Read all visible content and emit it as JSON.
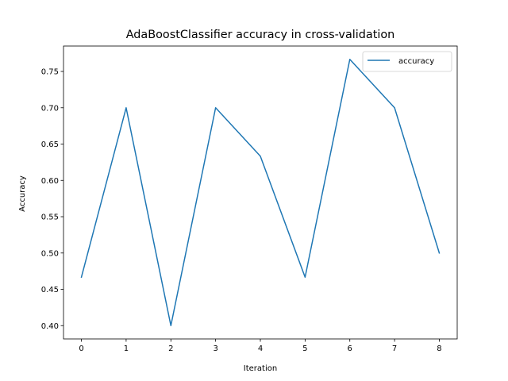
{
  "chart_data": {
    "type": "line",
    "title": "AdaBoostClassifier accuracy in cross-validation",
    "xlabel": "Iteration",
    "ylabel": "Accuracy",
    "x": [
      0,
      1,
      2,
      3,
      4,
      5,
      6,
      7,
      8
    ],
    "series": [
      {
        "name": "accuracy",
        "color": "#1f77b4",
        "values": [
          0.4667,
          0.7,
          0.4,
          0.7,
          0.6333,
          0.4667,
          0.7667,
          0.7,
          0.5
        ]
      }
    ],
    "xlim": [
      -0.4,
      8.4
    ],
    "ylim": [
      0.3817,
      0.785
    ],
    "xticks": [
      0,
      1,
      2,
      3,
      4,
      5,
      6,
      7,
      8
    ],
    "xtick_labels": [
      "0",
      "1",
      "2",
      "3",
      "4",
      "5",
      "6",
      "7",
      "8"
    ],
    "yticks": [
      0.4,
      0.45,
      0.5,
      0.55,
      0.6,
      0.65,
      0.7,
      0.75
    ],
    "ytick_labels": [
      "0.40",
      "0.45",
      "0.50",
      "0.55",
      "0.60",
      "0.65",
      "0.70",
      "0.75"
    ],
    "grid": false,
    "legend_position": "top-right"
  }
}
